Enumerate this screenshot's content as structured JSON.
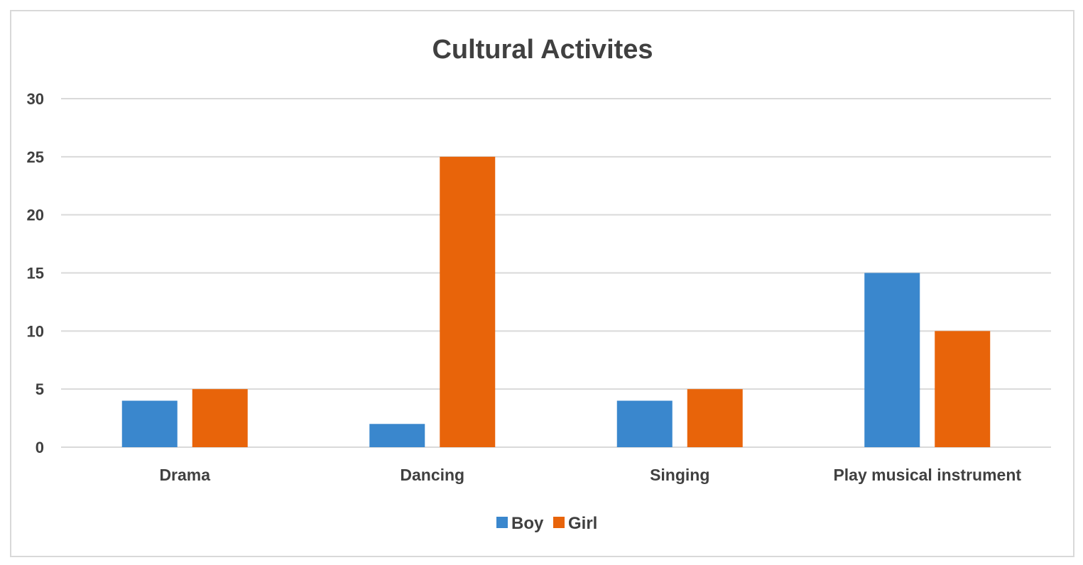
{
  "chart_data": {
    "type": "bar",
    "title": "Cultural Activites",
    "xlabel": "",
    "ylabel": "",
    "categories": [
      "Drama",
      "Dancing",
      "Singing",
      "Play musical instrument"
    ],
    "series": [
      {
        "name": "Boy",
        "values": [
          4,
          2,
          4,
          15
        ],
        "color": "#3a87cd"
      },
      {
        "name": "Girl",
        "values": [
          5,
          25,
          5,
          10
        ],
        "color": "#e8640a"
      }
    ],
    "ylim": [
      0,
      30
    ],
    "yticks": [
      0,
      5,
      10,
      15,
      20,
      25,
      30
    ],
    "grid": true,
    "legend_position": "bottom"
  }
}
